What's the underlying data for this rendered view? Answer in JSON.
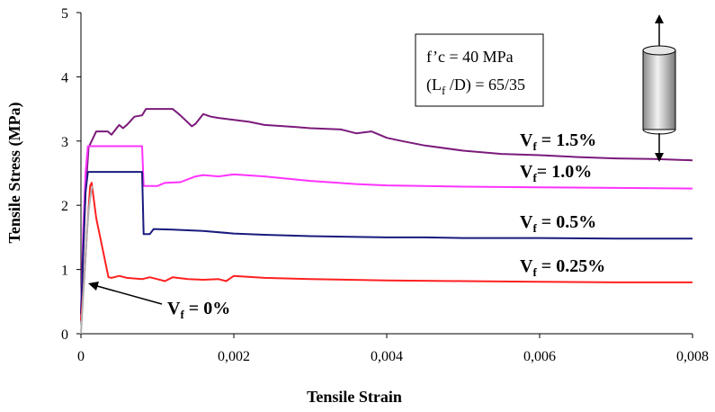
{
  "chart_data": {
    "type": "line",
    "xlabel": "Tensile Strain",
    "ylabel": "Tensile Stress (MPa)",
    "xlim": [
      0,
      0.008
    ],
    "ylim": [
      0,
      5
    ],
    "x_ticks": [
      {
        "value": 0,
        "label": "0"
      },
      {
        "value": 0.002,
        "label": "0,002"
      },
      {
        "value": 0.004,
        "label": "0,004"
      },
      {
        "value": 0.006,
        "label": "0,006"
      },
      {
        "value": 0.008,
        "label": "0,008"
      }
    ],
    "y_ticks": [
      {
        "value": 0,
        "label": "0"
      },
      {
        "value": 1,
        "label": "1"
      },
      {
        "value": 2,
        "label": "2"
      },
      {
        "value": 3,
        "label": "3"
      },
      {
        "value": 4,
        "label": "4"
      },
      {
        "value": 5,
        "label": "5"
      }
    ],
    "grid": false,
    "legend": "none",
    "annotation": {
      "line1": "f’c = 40 MPa",
      "line2_pre": "(L",
      "line2_sub": "f",
      "line2_post": " /D) = 65/35"
    },
    "series": [
      {
        "color": "#7b1a7b",
        "label_main": "V",
        "label_sub": "f",
        "label_tail": " = 1.5%",
        "x": [
          0,
          3e-05,
          6e-05,
          0.0001,
          0.00014,
          0.0002,
          0.00025,
          0.00035,
          0.0004,
          0.0005,
          0.00055,
          0.0006,
          0.0007,
          0.0008,
          0.00085,
          0.001,
          0.0012,
          0.0013,
          0.00145,
          0.0015,
          0.0016,
          0.0017,
          0.0018,
          0.002,
          0.0022,
          0.0024,
          0.0028,
          0.003,
          0.0034,
          0.0036,
          0.0038,
          0.004,
          0.0042,
          0.0045,
          0.005,
          0.0055,
          0.006,
          0.0065,
          0.007,
          0.0075,
          0.008
        ],
        "y": [
          0.2,
          1.2,
          2.2,
          2.9,
          3.0,
          3.15,
          3.15,
          3.15,
          3.1,
          3.25,
          3.2,
          3.25,
          3.38,
          3.4,
          3.5,
          3.5,
          3.5,
          3.4,
          3.23,
          3.27,
          3.42,
          3.38,
          3.36,
          3.33,
          3.3,
          3.25,
          3.22,
          3.2,
          3.18,
          3.12,
          3.15,
          3.05,
          3.0,
          2.93,
          2.85,
          2.8,
          2.78,
          2.75,
          2.73,
          2.72,
          2.7
        ]
      },
      {
        "color": "#ff33ff",
        "label_main": "V",
        "label_sub": "f",
        "label_tail": "= 1.0%",
        "x": [
          0,
          3e-05,
          6e-05,
          9e-05,
          0.00012,
          0.0004,
          0.0006,
          0.0008,
          0.00082,
          0.001,
          0.0011,
          0.0013,
          0.0015,
          0.0016,
          0.0018,
          0.002,
          0.0024,
          0.003,
          0.0036,
          0.004,
          0.005,
          0.006,
          0.007,
          0.008
        ],
        "y": [
          0.3,
          1.6,
          2.5,
          2.92,
          2.92,
          2.92,
          2.92,
          2.92,
          2.3,
          2.3,
          2.35,
          2.36,
          2.45,
          2.47,
          2.45,
          2.48,
          2.45,
          2.38,
          2.33,
          2.31,
          2.29,
          2.28,
          2.27,
          2.26
        ]
      },
      {
        "color": "#1a1a7e",
        "label_main": "V",
        "label_sub": "f",
        "label_tail": " = 0.5%",
        "x": [
          0,
          3e-05,
          6e-05,
          9e-05,
          0.0002,
          0.0004,
          0.0006,
          0.0008,
          0.00082,
          0.0009,
          0.00095,
          0.0012,
          0.0016,
          0.002,
          0.0024,
          0.003,
          0.004,
          0.0045,
          0.005,
          0.006,
          0.007,
          0.008
        ],
        "y": [
          0.3,
          1.3,
          2.2,
          2.52,
          2.52,
          2.52,
          2.52,
          2.52,
          1.55,
          1.55,
          1.63,
          1.62,
          1.6,
          1.56,
          1.54,
          1.52,
          1.5,
          1.5,
          1.49,
          1.49,
          1.48,
          1.48
        ]
      },
      {
        "color": "#ff2020",
        "label_main": "V",
        "label_sub": "f",
        "label_tail": " = 0.25%",
        "x": [
          0,
          4e-05,
          8e-05,
          0.00012,
          0.00014,
          0.0002,
          0.00036,
          0.0004,
          0.0005,
          0.0006,
          0.0008,
          0.0009,
          0.001,
          0.0011,
          0.0012,
          0.0014,
          0.0016,
          0.0018,
          0.0019,
          0.002,
          0.0024,
          0.003,
          0.004,
          0.005,
          0.006,
          0.007,
          0.008
        ],
        "y": [
          0.2,
          0.8,
          1.6,
          2.3,
          2.35,
          1.8,
          0.88,
          0.87,
          0.9,
          0.87,
          0.85,
          0.88,
          0.85,
          0.82,
          0.88,
          0.85,
          0.84,
          0.85,
          0.82,
          0.9,
          0.87,
          0.85,
          0.83,
          0.82,
          0.81,
          0.8,
          0.8
        ]
      },
      {
        "color": "#b0b0b0",
        "label_main": "V",
        "label_sub": "f",
        "label_tail": " = 0%",
        "x": [
          0,
          2e-05,
          4e-05,
          6e-05,
          8e-05,
          0.0001,
          0.00012,
          0.00014,
          0.00015
        ],
        "y": [
          0,
          0.4,
          0.8,
          1.2,
          1.6,
          1.9,
          2.1,
          2.25,
          2.3
        ]
      }
    ]
  }
}
